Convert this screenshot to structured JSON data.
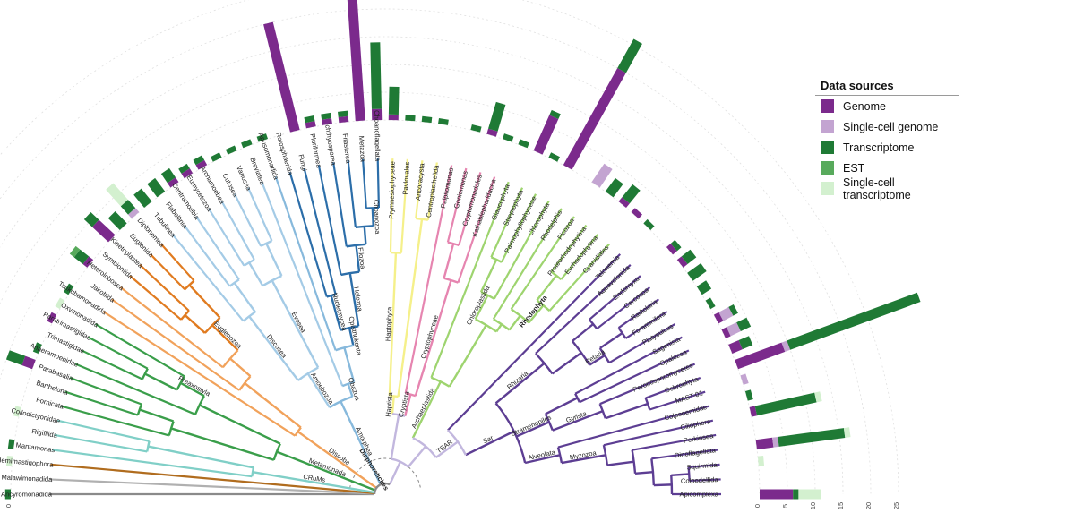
{
  "legend": {
    "title": "Data sources",
    "items": [
      {
        "label": "Genome",
        "color": "#7b2a8c"
      },
      {
        "label": "Single-cell genome",
        "color": "#c3a4d1"
      },
      {
        "label": "Transcriptome",
        "color": "#1f7a35"
      },
      {
        "label": "EST",
        "color": "#58aa5c"
      },
      {
        "label": "Single-cell transcriptome",
        "color": "#d3f0cf"
      }
    ]
  },
  "axes": {
    "left_ticks": [
      "25",
      "20",
      "15",
      "10",
      "5",
      "0"
    ],
    "right_ticks": [
      "0",
      "5",
      "10",
      "15",
      "20",
      "25"
    ]
  },
  "clades": {
    "Diaphoretickes": "Diaphoretickes",
    "TSAR": "TSAR",
    "Sar": "Sar",
    "Rhizaria": "Rhizaria",
    "Stramenopiles": "Stramenopiles",
    "Alveolata": "Alveolata",
    "Myzozoa": "Myzozoa",
    "Retaria": "Retaria",
    "Gyrista": "Gyrista",
    "Archaeplastida": "Archaeplastida",
    "Chloroplastida": "Chloroplastida",
    "Rhodophyta": "Rhodophyta",
    "Cryptista": "Cryptista",
    "Cryptophyceae": "Cryptophyceae",
    "Haptista": "Haptista",
    "Haptophyta": "Haptophyta",
    "Amorphea": "Amorphea",
    "Obazoa": "Obazoa",
    "Opisthokonta": "Opisthokonta",
    "Holozoa": "Holozoa",
    "Nucletmycea": "Nucletmycea",
    "Choanozoa": "Choanozoa",
    "Filozoa": "Filozoa",
    "Amoebozoa": "Amoebozoa",
    "Evosea": "Evosea",
    "Discosea": "Discosea",
    "Discoba": "Discoba",
    "Euglenozoa": "Euglenozoa",
    "Metamonada": "Metamonada",
    "Preaxostyla": "Preaxostyla",
    "CRuMs": "CRuMs"
  },
  "taxa": [
    {
      "name": "Ancyromonadida",
      "group": "ancyro",
      "genome": 0,
      "sc_genome": 0,
      "transcriptome": 1,
      "est": 0,
      "sc_transcriptome": 0
    },
    {
      "name": "Malawimonadida",
      "group": "malawi",
      "genome": 0,
      "sc_genome": 0,
      "transcriptome": 0,
      "est": 0,
      "sc_transcriptome": 0
    },
    {
      "name": "Hemimastigophora",
      "group": "hemi",
      "genome": 0,
      "sc_genome": 0,
      "transcriptome": 0,
      "est": 0,
      "sc_transcriptome": 1
    },
    {
      "name": "Mantamonas",
      "group": "crums",
      "genome": 0,
      "sc_genome": 0,
      "transcriptome": 1,
      "est": 0,
      "sc_transcriptome": 0
    },
    {
      "name": "Rigifilida",
      "group": "crums",
      "genome": 0,
      "sc_genome": 0,
      "transcriptome": 0,
      "est": 0,
      "sc_transcriptome": 0
    },
    {
      "name": "Collodictyonidae",
      "group": "crums",
      "genome": 0,
      "sc_genome": 0,
      "transcriptome": 0,
      "est": 0,
      "sc_transcriptome": 1
    },
    {
      "name": "Fornicata",
      "group": "meta",
      "genome": 0,
      "sc_genome": 0,
      "transcriptome": 0,
      "est": 0,
      "sc_transcriptome": 0
    },
    {
      "name": "Barthelona",
      "group": "meta",
      "genome": 0,
      "sc_genome": 0,
      "transcriptome": 0,
      "est": 0,
      "sc_transcriptome": 0
    },
    {
      "name": "Parabasalia",
      "group": "meta",
      "genome": 2,
      "sc_genome": 0,
      "transcriptome": 3,
      "est": 0,
      "sc_transcriptome": 0
    },
    {
      "name": "Anaeramoebidae",
      "group": "meta",
      "genome": 0,
      "sc_genome": 0,
      "transcriptome": 1,
      "est": 0,
      "sc_transcriptome": 0
    },
    {
      "name": "Trimastigidae",
      "group": "meta",
      "genome": 0,
      "sc_genome": 0,
      "transcriptome": 0,
      "est": 0,
      "sc_transcriptome": 0
    },
    {
      "name": "Paratrimastigidae",
      "group": "meta",
      "genome": 1,
      "sc_genome": 0,
      "transcriptome": 0,
      "est": 0,
      "sc_transcriptome": 0
    },
    {
      "name": "Oxymonadida",
      "group": "meta",
      "genome": 0,
      "sc_genome": 0,
      "transcriptome": 0,
      "est": 0,
      "sc_transcriptome": 1
    },
    {
      "name": "Tsukubamonadida",
      "group": "disc",
      "genome": 0,
      "sc_genome": 0,
      "transcriptome": 1,
      "est": 0,
      "sc_transcriptome": 0
    },
    {
      "name": "Jakobida",
      "group": "disc",
      "genome": 0,
      "sc_genome": 0,
      "transcriptome": 0,
      "est": 0,
      "sc_transcriptome": 0
    },
    {
      "name": "Heterolobosea",
      "group": "disc",
      "genome": 1,
      "sc_genome": 0,
      "transcriptome": 2,
      "est": 1,
      "sc_transcriptome": 0
    },
    {
      "name": "Symbiontida",
      "group": "eugl",
      "genome": 0,
      "sc_genome": 0,
      "transcriptome": 0,
      "est": 0,
      "sc_transcriptome": 0
    },
    {
      "name": "Kinetoplastea",
      "group": "eugl",
      "genome": 4,
      "sc_genome": 0,
      "transcriptome": 2,
      "est": 0,
      "sc_transcriptome": 0
    },
    {
      "name": "Euglenida",
      "group": "eugl",
      "genome": 0,
      "sc_genome": 0,
      "transcriptome": 3,
      "est": 0,
      "sc_transcriptome": 0
    },
    {
      "name": "Diplonemea",
      "group": "eugl",
      "genome": 0,
      "sc_genome": 1,
      "transcriptome": 2,
      "est": 0,
      "sc_transcriptome": 4
    },
    {
      "name": "Tubulinea",
      "group": "amoe",
      "genome": 0,
      "sc_genome": 0,
      "transcriptome": 3,
      "est": 0,
      "sc_transcriptome": 0
    },
    {
      "name": "Flabellinia",
      "group": "amoe",
      "genome": 0,
      "sc_genome": 0,
      "transcriptome": 3,
      "est": 0,
      "sc_transcriptome": 0
    },
    {
      "name": "Centramoebia",
      "group": "amoe",
      "genome": 1,
      "sc_genome": 0,
      "transcriptome": 2,
      "est": 0,
      "sc_transcriptome": 0
    },
    {
      "name": "Eumycetozoa",
      "group": "amoe",
      "genome": 1,
      "sc_genome": 0,
      "transcriptome": 1,
      "est": 0,
      "sc_transcriptome": 0
    },
    {
      "name": "Archamoebea",
      "group": "amoe",
      "genome": 1,
      "sc_genome": 0,
      "transcriptome": 1,
      "est": 0,
      "sc_transcriptome": 0
    },
    {
      "name": "Cutosea",
      "group": "amoe",
      "genome": 0,
      "sc_genome": 0,
      "transcriptome": 1,
      "est": 0,
      "sc_transcriptome": 0
    },
    {
      "name": "Variosea",
      "group": "amoe",
      "genome": 0,
      "sc_genome": 0,
      "transcriptome": 1,
      "est": 0,
      "sc_transcriptome": 0
    },
    {
      "name": "Breviatea",
      "group": "amoe",
      "genome": 0,
      "sc_genome": 0,
      "transcriptome": 1,
      "est": 0,
      "sc_transcriptome": 0
    },
    {
      "name": "Apusomonadida",
      "group": "obaz",
      "genome": 0,
      "sc_genome": 0,
      "transcriptome": 1,
      "est": 0,
      "sc_transcriptome": 0
    },
    {
      "name": "Rotosphaerida",
      "group": "opis",
      "genome": 0,
      "sc_genome": 0,
      "transcriptome": 0,
      "est": 0,
      "sc_transcriptome": 0
    },
    {
      "name": "Fungi",
      "group": "opis",
      "genome": 20,
      "sc_genome": 0,
      "transcriptome": 0,
      "est": 0,
      "sc_transcriptome": 0
    },
    {
      "name": "Pluriformea",
      "group": "opis",
      "genome": 1,
      "sc_genome": 0,
      "transcriptome": 1,
      "est": 0,
      "sc_transcriptome": 0
    },
    {
      "name": "Ichthyosporea",
      "group": "opis",
      "genome": 1,
      "sc_genome": 0,
      "transcriptome": 1,
      "est": 0,
      "sc_transcriptome": 0
    },
    {
      "name": "Filasterea",
      "group": "opis",
      "genome": 1,
      "sc_genome": 0,
      "transcriptome": 1,
      "est": 0,
      "sc_transcriptome": 0
    },
    {
      "name": "Metazoa",
      "group": "opis",
      "genome": 22,
      "sc_genome": 2,
      "transcriptome": 2,
      "est": 0,
      "sc_transcriptome": 0
    },
    {
      "name": "Choanoflagellata",
      "group": "opis",
      "genome": 2,
      "sc_genome": 0,
      "transcriptome": 12,
      "est": 0,
      "sc_transcriptome": 0
    },
    {
      "name": "Prymnesiophyceae",
      "group": "hapt",
      "genome": 1,
      "sc_genome": 0,
      "transcriptome": 5,
      "est": 0,
      "sc_transcriptome": 0
    },
    {
      "name": "Pavlovales",
      "group": "hapt",
      "genome": 0,
      "sc_genome": 0,
      "transcriptome": 1,
      "est": 0,
      "sc_transcriptome": 0
    },
    {
      "name": "Ancoracysta",
      "group": "hapt",
      "genome": 0,
      "sc_genome": 0,
      "transcriptome": 1,
      "est": 0,
      "sc_transcriptome": 0
    },
    {
      "name": "Centroplasthelida",
      "group": "hapt",
      "genome": 0,
      "sc_genome": 0,
      "transcriptome": 1,
      "est": 0,
      "sc_transcriptome": 0
    },
    {
      "name": "Palpitomonas",
      "group": "cryp",
      "genome": 0,
      "sc_genome": 0,
      "transcriptome": 0,
      "est": 0,
      "sc_transcriptome": 0
    },
    {
      "name": "Goniomonas",
      "group": "cryp",
      "genome": 0,
      "sc_genome": 0,
      "transcriptome": 1,
      "est": 0,
      "sc_transcriptome": 0
    },
    {
      "name": "Cryptomonadales",
      "group": "cryp",
      "genome": 1,
      "sc_genome": 0,
      "transcriptome": 5,
      "est": 0,
      "sc_transcriptome": 0
    },
    {
      "name": "Kathablepharidacea",
      "group": "cryp",
      "genome": 0,
      "sc_genome": 0,
      "transcriptome": 1,
      "est": 0,
      "sc_transcriptome": 0
    },
    {
      "name": "Glaucophyta",
      "group": "arch",
      "genome": 0,
      "sc_genome": 0,
      "transcriptome": 1,
      "est": 0,
      "sc_transcriptome": 0
    },
    {
      "name": "Streptophyta",
      "group": "arch",
      "genome": 7,
      "sc_genome": 0,
      "transcriptome": 1,
      "est": 0,
      "sc_transcriptome": 0
    },
    {
      "name": "Palmophyllophyceae",
      "group": "arch",
      "genome": 0,
      "sc_genome": 0,
      "transcriptome": 1,
      "est": 0,
      "sc_transcriptome": 0
    },
    {
      "name": "Chlorophyta",
      "group": "arch",
      "genome": 20,
      "sc_genome": 0,
      "transcriptome": 6,
      "est": 0,
      "sc_transcriptome": 0
    },
    {
      "name": "Rhodelphis",
      "group": "arch",
      "genome": 0,
      "sc_genome": 0,
      "transcriptome": 0,
      "est": 0,
      "sc_transcriptome": 0
    },
    {
      "name": "Picozoa",
      "group": "arch",
      "genome": 0,
      "sc_genome": 4,
      "transcriptome": 0,
      "est": 0,
      "sc_transcriptome": 0
    },
    {
      "name": "Proteorhodophytina",
      "group": "arch",
      "genome": 0,
      "sc_genome": 0,
      "transcriptome": 3,
      "est": 0,
      "sc_transcriptome": 0
    },
    {
      "name": "Eurhodophytina",
      "group": "arch",
      "genome": 1,
      "sc_genome": 0,
      "transcriptome": 3,
      "est": 0,
      "sc_transcriptome": 0
    },
    {
      "name": "Cyanidiales",
      "group": "arch",
      "genome": 1,
      "sc_genome": 0,
      "transcriptome": 0,
      "est": 0,
      "sc_transcriptome": 0
    },
    {
      "name": "Telonemia",
      "group": "tsar",
      "genome": 0,
      "sc_genome": 0,
      "transcriptome": 1,
      "est": 0,
      "sc_transcriptome": 0
    },
    {
      "name": "Aquavolonida",
      "group": "tsar",
      "genome": 0,
      "sc_genome": 0,
      "transcriptome": 0,
      "est": 0,
      "sc_transcriptome": 0
    },
    {
      "name": "Endomyxa",
      "group": "tsar",
      "genome": 1,
      "sc_genome": 0,
      "transcriptome": 1,
      "est": 0,
      "sc_transcriptome": 0
    },
    {
      "name": "Cercozoa",
      "group": "tsar",
      "genome": 1,
      "sc_genome": 0,
      "transcriptome": 2,
      "est": 0,
      "sc_transcriptome": 0
    },
    {
      "name": "Radiolaria",
      "group": "tsar",
      "genome": 0,
      "sc_genome": 0,
      "transcriptome": 3,
      "est": 0,
      "sc_transcriptome": 0
    },
    {
      "name": "Foraminifera",
      "group": "tsar",
      "genome": 0,
      "sc_genome": 0,
      "transcriptome": 2,
      "est": 0,
      "sc_transcriptome": 0
    },
    {
      "name": "Platysulcus",
      "group": "tsar",
      "genome": 0,
      "sc_genome": 0,
      "transcriptome": 1,
      "est": 0,
      "sc_transcriptome": 0
    },
    {
      "name": "Sagenista",
      "group": "tsar",
      "genome": 1,
      "sc_genome": 2,
      "transcriptome": 1,
      "est": 0,
      "sc_transcriptome": 0
    },
    {
      "name": "Opalozoa",
      "group": "tsar",
      "genome": 1,
      "sc_genome": 2,
      "transcriptome": 2,
      "est": 0,
      "sc_transcriptome": 0
    },
    {
      "name": "Peronosporomycetes",
      "group": "tsar",
      "genome": 2,
      "sc_genome": 0,
      "transcriptome": 2,
      "est": 0,
      "sc_transcriptome": 0
    },
    {
      "name": "Ochrophyta",
      "group": "tsar",
      "genome": 9,
      "sc_genome": 1,
      "transcriptome": 25,
      "est": 0,
      "sc_transcriptome": 0
    },
    {
      "name": "MAST-01",
      "group": "tsar",
      "genome": 0,
      "sc_genome": 1,
      "transcriptome": 0,
      "est": 0,
      "sc_transcriptome": 0
    },
    {
      "name": "Colponemidae",
      "group": "tsar",
      "genome": 0,
      "sc_genome": 0,
      "transcriptome": 1,
      "est": 0,
      "sc_transcriptome": 0
    },
    {
      "name": "Ciliophora",
      "group": "tsar",
      "genome": 1,
      "sc_genome": 0,
      "transcriptome": 11,
      "est": 0,
      "sc_transcriptome": 1
    },
    {
      "name": "Perkinsea",
      "group": "tsar",
      "genome": 0,
      "sc_genome": 0,
      "transcriptome": 0,
      "est": 0,
      "sc_transcriptome": 0
    },
    {
      "name": "Dinoflagellata",
      "group": "tsar",
      "genome": 3,
      "sc_genome": 1,
      "transcriptome": 12,
      "est": 0,
      "sc_transcriptome": 1
    },
    {
      "name": "Squirmida",
      "group": "tsar",
      "genome": 0,
      "sc_genome": 0,
      "transcriptome": 0,
      "est": 0,
      "sc_transcriptome": 1
    },
    {
      "name": "Colpodellida",
      "group": "tsar",
      "genome": 0,
      "sc_genome": 0,
      "transcriptome": 0,
      "est": 0,
      "sc_transcriptome": 0
    },
    {
      "name": "Apicomplexa",
      "group": "tsar",
      "genome": 6,
      "sc_genome": 0,
      "transcriptome": 1,
      "est": 0,
      "sc_transcriptome": 4
    }
  ],
  "colors": {
    "ancyro": "#8a8a8a",
    "malawi": "#b0b0b0",
    "hemi": "#b06c1e",
    "crums": "#80cfc7",
    "meta": "#3a9e4a",
    "disc": "#f1a25b",
    "eugl": "#e07b20",
    "amoe": "#a4cbe6",
    "obaz": "#87b9dc",
    "opis": "#2c6ea9",
    "hapt": "#f5f08a",
    "cryp": "#e685b0",
    "arch": "#9ed46f",
    "tsar": "#c2b7de",
    "tsar_dark": "#5d3e93"
  }
}
